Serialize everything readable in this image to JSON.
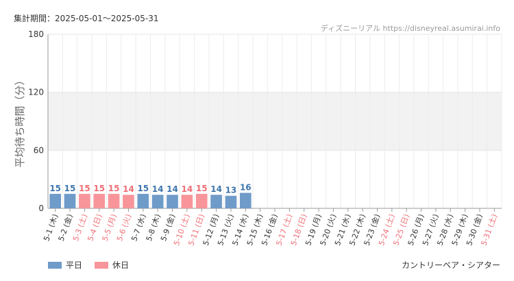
{
  "header": {
    "period_label": "集計期間：",
    "period_range": "2025-05-01～2025-05-31",
    "source_text": "ディズニーリアル https://disneyreal.asumirai.info"
  },
  "footer": {
    "attraction_name": "カントリーベア・シアター"
  },
  "legend": [
    {
      "label": "平日",
      "color": "#6f9bc9"
    },
    {
      "label": "休日",
      "color": "#f7959a"
    }
  ],
  "colors": {
    "weekday_bar": "#6f9bc9",
    "holiday_bar": "#f7959a",
    "weekday_label": "#3f76ad",
    "holiday_label": "#ee6f76",
    "band": "#f2f2f2"
  },
  "chart_data": {
    "type": "bar",
    "ylabel": "平均待ち時間（分）",
    "xlabel": "",
    "ylim": [
      0,
      180
    ],
    "yticks": [
      0,
      60,
      120,
      180
    ],
    "bands": [
      [
        60,
        120
      ]
    ],
    "grid": true,
    "legend_position": "bottom-left",
    "categories": [
      "5-1 (木)",
      "5-2 (金)",
      "5-3 (土)",
      "5-4 (日)",
      "5-5 (月)",
      "5-6 (火)",
      "5-7 (水)",
      "5-8 (木)",
      "5-9 (金)",
      "5-10 (土)",
      "5-11 (日)",
      "5-12 (月)",
      "5-13 (火)",
      "5-14 (水)",
      "5-15 (木)",
      "5-16 (金)",
      "5-17 (土)",
      "5-18 (日)",
      "5-19 (月)",
      "5-20 (火)",
      "5-21 (水)",
      "5-22 (木)",
      "5-23 (金)",
      "5-24 (土)",
      "5-25 (日)",
      "5-26 (月)",
      "5-27 (火)",
      "5-28 (水)",
      "5-29 (木)",
      "5-30 (金)",
      "5-31 (土)"
    ],
    "day_type": [
      "平日",
      "平日",
      "休日",
      "休日",
      "休日",
      "休日",
      "平日",
      "平日",
      "平日",
      "休日",
      "休日",
      "平日",
      "平日",
      "平日",
      "平日",
      "平日",
      "休日",
      "休日",
      "平日",
      "平日",
      "平日",
      "平日",
      "平日",
      "休日",
      "休日",
      "平日",
      "平日",
      "平日",
      "平日",
      "平日",
      "休日"
    ],
    "values": [
      15,
      15,
      15,
      15,
      15,
      14,
      15,
      14,
      14,
      14,
      15,
      14,
      13,
      16,
      null,
      null,
      null,
      null,
      null,
      null,
      null,
      null,
      null,
      null,
      null,
      null,
      null,
      null,
      null,
      null,
      null
    ]
  }
}
